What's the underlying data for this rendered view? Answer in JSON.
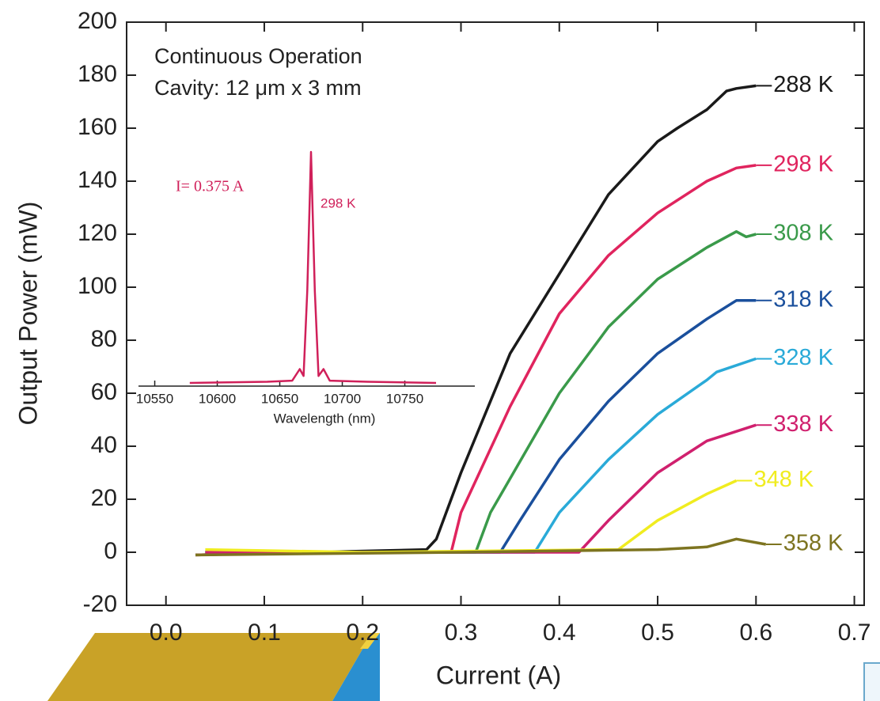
{
  "chart_data": [
    {
      "type": "line",
      "annotations": [
        "Continuous Operation",
        "Cavity: 12 μm x 3 mm"
      ],
      "x_label": "Current (A)",
      "y_label": "Output Power (mW)",
      "xlim": [
        -0.04,
        0.71
      ],
      "xticks": [
        {
          "value": 0,
          "label": "0.0"
        },
        0.1,
        0.2,
        0.3,
        0.4,
        0.5,
        0.6,
        0.7
      ],
      "ylim": [
        -20,
        200
      ],
      "yticks": [
        -20,
        0,
        20,
        40,
        60,
        80,
        100,
        120,
        140,
        160,
        180,
        200
      ],
      "series": [
        {
          "name": "288 K",
          "color": "#1a1a1a",
          "x": [
            0.03,
            0.15,
            0.265,
            0.275,
            0.3,
            0.35,
            0.4,
            0.45,
            0.5,
            0.52,
            0.55,
            0.57,
            0.58,
            0.6
          ],
          "values": [
            -1,
            0,
            1,
            5,
            30,
            75,
            105,
            135,
            155,
            160,
            167,
            174,
            175,
            176
          ]
        },
        {
          "name": "298 K",
          "color": "#e0245e",
          "x": [
            0.03,
            0.15,
            0.29,
            0.3,
            0.35,
            0.4,
            0.45,
            0.5,
            0.55,
            0.58,
            0.6
          ],
          "values": [
            -1,
            0,
            0,
            15,
            55,
            90,
            112,
            128,
            140,
            145,
            146
          ]
        },
        {
          "name": "308 K",
          "color": "#3a9a4a",
          "x": [
            0.04,
            0.2,
            0.315,
            0.33,
            0.4,
            0.45,
            0.5,
            0.55,
            0.58,
            0.59,
            0.6
          ],
          "values": [
            0,
            0,
            0,
            15,
            60,
            85,
            103,
            115,
            121,
            119,
            120
          ]
        },
        {
          "name": "318 K",
          "color": "#1a4f9c",
          "x": [
            0.04,
            0.2,
            0.34,
            0.36,
            0.4,
            0.45,
            0.5,
            0.55,
            0.58,
            0.6
          ],
          "values": [
            0,
            0,
            0,
            12,
            35,
            57,
            75,
            88,
            95,
            95
          ]
        },
        {
          "name": "328 K",
          "color": "#2aaad8",
          "x": [
            0.04,
            0.2,
            0.375,
            0.4,
            0.45,
            0.5,
            0.55,
            0.56,
            0.6
          ],
          "values": [
            0,
            0,
            0,
            15,
            35,
            52,
            65,
            68,
            73
          ]
        },
        {
          "name": "338 K",
          "color": "#d0206e",
          "x": [
            0.04,
            0.2,
            0.42,
            0.45,
            0.5,
            0.55,
            0.6
          ],
          "values": [
            0,
            0,
            0,
            12,
            30,
            42,
            48
          ]
        },
        {
          "name": "348 K",
          "color": "#f0ec20",
          "x": [
            0.04,
            0.2,
            0.46,
            0.5,
            0.55,
            0.58
          ],
          "values": [
            1,
            0,
            1,
            12,
            22,
            27
          ]
        },
        {
          "name": "358 K",
          "color": "#7d7420",
          "x": [
            0.03,
            0.3,
            0.5,
            0.55,
            0.58,
            0.61
          ],
          "values": [
            -1,
            0,
            1,
            2,
            5,
            3
          ]
        }
      ]
    },
    {
      "type": "line",
      "annotations": [
        "I= 0.375 A",
        "298 K"
      ],
      "x_label": "Wavelength (nm)",
      "xlim": [
        10537,
        10806
      ],
      "xticks": [
        10550,
        10600,
        10650,
        10700,
        10750
      ],
      "ylim": [
        0,
        100
      ],
      "series": [
        {
          "color": "#d0205a",
          "x": [
            10578,
            10640,
            10660,
            10666,
            10669,
            10672,
            10675,
            10678,
            10681,
            10685,
            10690,
            10720,
            10775
          ],
          "values": [
            0,
            0.5,
            1,
            6,
            3,
            40,
            100,
            40,
            3,
            6,
            1,
            0.5,
            0
          ]
        }
      ]
    }
  ]
}
